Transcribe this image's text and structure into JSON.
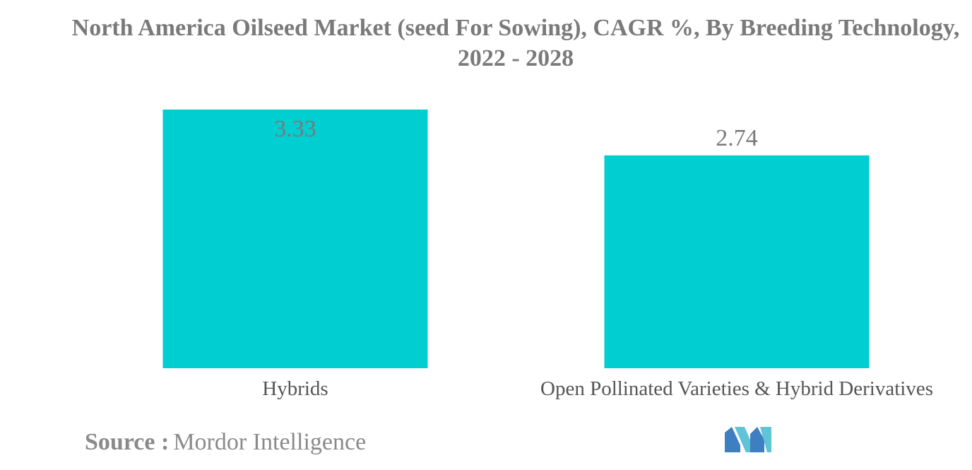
{
  "title": "North America Oilseed Market (seed For Sowing), CAGR %, By Breeding Technology, 2022 - 2028",
  "source": {
    "label": "Source :",
    "value": "Mordor Intelligence"
  },
  "logo": {
    "name": "mordor-intelligence-logo",
    "colors": [
      "#3e7fc1",
      "#5ec4d6"
    ]
  },
  "chart_data": {
    "type": "bar",
    "categories": [
      "Hybrids",
      "Open Pollinated Varieties & Hybrid Derivatives"
    ],
    "values": [
      3.33,
      2.74
    ],
    "data_labels": [
      "3.33",
      "2.74"
    ],
    "title": "North America Oilseed Market (seed For Sowing), CAGR %, By Breeding Technology, 2022 - 2028",
    "xlabel": "",
    "ylabel": "",
    "ylim": [
      0,
      3.33
    ],
    "grid": false,
    "legend": "none",
    "bar_color": "#00ced1",
    "label_color": "#7a7a7a",
    "axis_text_color": "#555555"
  }
}
